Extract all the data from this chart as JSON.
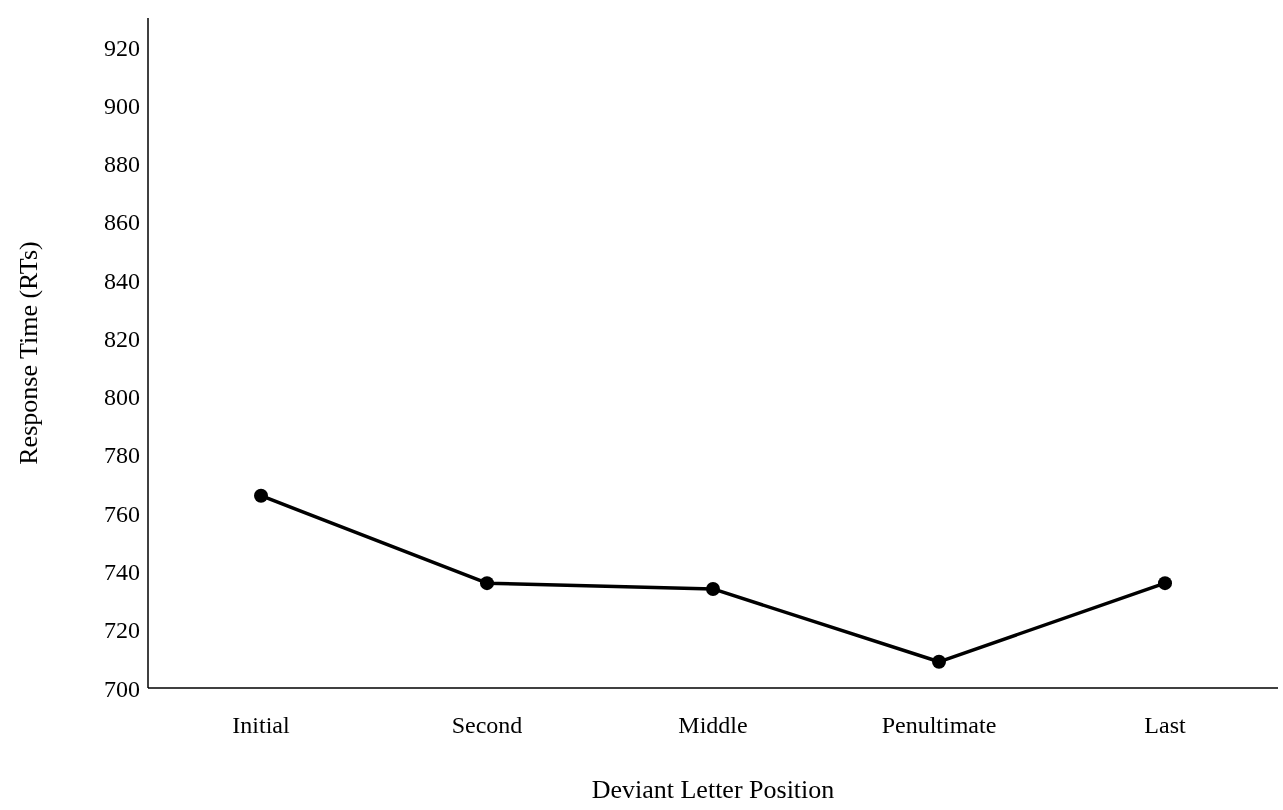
{
  "chart_data": {
    "type": "line",
    "xlabel": "Deviant Letter Position",
    "ylabel": "Response Time (RTs)",
    "categories": [
      "Initial",
      "Second",
      "Middle",
      "Penultimate",
      "Last"
    ],
    "series": [
      {
        "color": "#000000",
        "values": [
          766,
          736,
          734,
          709,
          736
        ]
      }
    ],
    "ylim": [
      700,
      930
    ],
    "yticks": [
      700,
      720,
      740,
      760,
      780,
      800,
      820,
      840,
      860,
      880,
      900,
      920
    ],
    "grid": false,
    "legend": false,
    "marker": "circle",
    "line_style": "solid"
  }
}
